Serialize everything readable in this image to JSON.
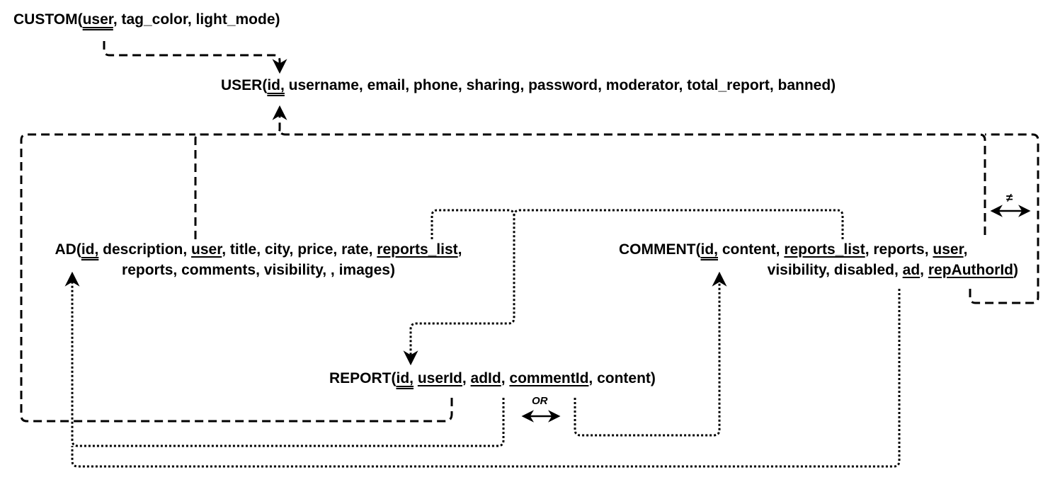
{
  "relations": {
    "custom": {
      "name": "CUSTOM(",
      "pk": "user",
      "rest": ", tag_color, light_mode)"
    },
    "user": {
      "name": "USER(",
      "pk": "id,",
      "rest": " username, email, phone, sharing, password, moderator, total_report, banned)"
    },
    "ad": {
      "name": "AD(",
      "pk": "id,",
      "sep1": " description, ",
      "fk_user": "user",
      "sep2": ", title, city, price, rate, ",
      "fk_reports": "reports_list",
      "sep3": ",",
      "line2": "reports, comments, visibility, , images)"
    },
    "comment": {
      "name": "COMMENT(",
      "pk": "id,",
      "sep1": " content, ",
      "fk_reports": "reports_list",
      "sep2": ", reports, ",
      "fk_user": "user",
      "sep3": ",",
      "line2_pre": "visibility, disabled, ",
      "fk_ad": "ad",
      "line2_mid": ", ",
      "fk_author": "repAuthorId",
      "line2_end": ")"
    },
    "report": {
      "name": "REPORT(",
      "pk": "id,",
      "sep1": " ",
      "fk_user": "userId",
      "sep2": ", ",
      "fk_ad": "adId",
      "sep3": ", ",
      "fk_comment": "commentId",
      "rest": ", content)"
    }
  },
  "annotations": {
    "or_label": "OR",
    "neq_label": "≠"
  }
}
